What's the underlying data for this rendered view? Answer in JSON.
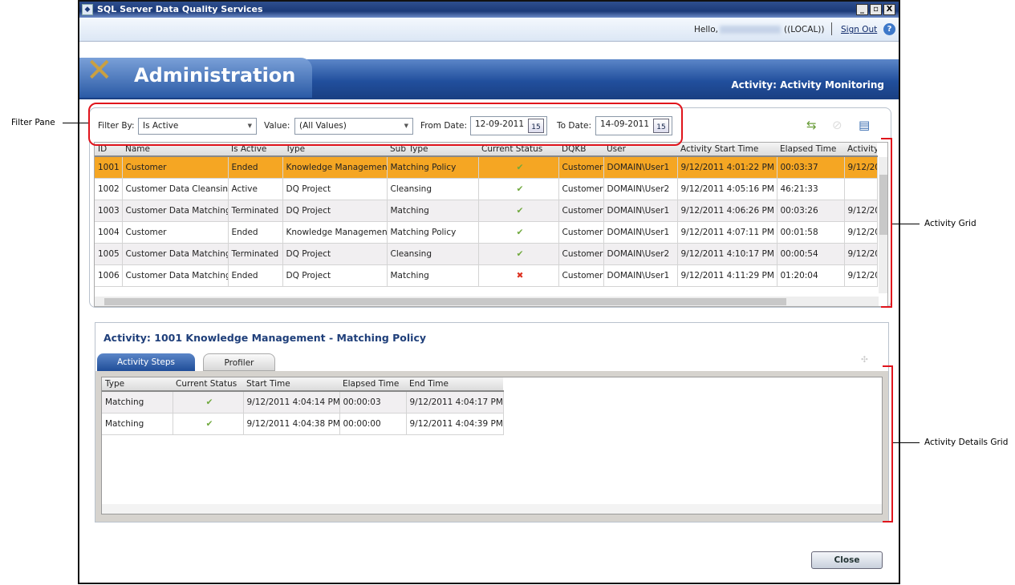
{
  "window": {
    "title": "SQL Server Data Quality Services",
    "minimize": "_",
    "restore": "▫",
    "close": "X"
  },
  "header": {
    "hello": "Hello,",
    "server": "((LOCAL))",
    "sign_out": "Sign Out",
    "help": "?"
  },
  "banner": {
    "title": "Administration",
    "subtitle": "Activity: Activity Monitoring"
  },
  "filter": {
    "filter_by_label": "Filter By:",
    "filter_by_value": "Is Active",
    "value_label": "Value:",
    "value_value": "(All Values)",
    "from_label": "From Date:",
    "from_value": "12-09-2011",
    "to_label": "To Date:",
    "to_value": "14-09-2011",
    "calendar_text": "15"
  },
  "toolbar_icons": [
    "refresh-icon",
    "terminate-icon",
    "export-icon"
  ],
  "grid": {
    "columns": [
      "ID",
      "Name",
      "Is Active",
      "Type",
      "Sub Type",
      "Current Status",
      "DQKB",
      "User",
      "Activity Start Time",
      "Elapsed Time",
      "Activity"
    ],
    "rows": [
      [
        "1001",
        "Customer",
        "Ended",
        "Knowledge Management",
        "Matching Policy",
        "ok",
        "Customer",
        "DOMAIN\\User1",
        "9/12/2011 4:01:22 PM",
        "00:03:37",
        "9/12/20"
      ],
      [
        "1002",
        "Customer Data Cleansing",
        "Active",
        "DQ Project",
        "Cleansing",
        "ok",
        "Customer",
        "DOMAIN\\User2",
        "9/12/2011 4:05:16 PM",
        "46:21:33",
        ""
      ],
      [
        "1003",
        "Customer Data Matching",
        "Terminated",
        "DQ Project",
        "Matching",
        "ok",
        "Customer",
        "DOMAIN\\User1",
        "9/12/2011 4:06:26 PM",
        "00:03:26",
        "9/12/20"
      ],
      [
        "1004",
        "Customer",
        "Ended",
        "Knowledge Management",
        "Matching Policy",
        "ok",
        "Customer",
        "DOMAIN\\User1",
        "9/12/2011 4:07:11 PM",
        "00:01:58",
        "9/12/20"
      ],
      [
        "1005",
        "Customer Data Matching",
        "Terminated",
        "DQ Project",
        "Cleansing",
        "ok",
        "Customer",
        "DOMAIN\\User2",
        "9/12/2011 4:10:17 PM",
        "00:00:54",
        "9/12/20"
      ],
      [
        "1006",
        "Customer Data Matching",
        "Ended",
        "DQ Project",
        "Matching",
        "fail",
        "Customer",
        "DOMAIN\\User1",
        "9/12/2011 4:11:29 PM",
        "01:20:04",
        "9/12/20"
      ]
    ],
    "selected_row": 0
  },
  "details": {
    "heading": "Activity:  1001 Knowledge Management - Matching Policy",
    "tabs": [
      "Activity Steps",
      "Profiler"
    ],
    "active_tab": 0,
    "columns": [
      "Type",
      "Current Status",
      "Start Time",
      "Elapsed Time",
      "End Time"
    ],
    "rows": [
      [
        "Matching",
        "ok",
        "9/12/2011 4:04:14 PM",
        "00:00:03",
        "9/12/2011 4:04:17 PM"
      ],
      [
        "Matching",
        "ok",
        "9/12/2011 4:04:38 PM",
        "00:00:00",
        "9/12/2011 4:04:39 PM"
      ]
    ]
  },
  "close_label": "Close",
  "annotations": {
    "filter_pane": "Filter Pane",
    "activity_grid": "Activity Grid",
    "activity_details_grid": "Activity Details Grid"
  },
  "colors": {
    "selected_row": "#f5a623",
    "banner": "#214f9d",
    "annotation": "#e0141c"
  }
}
